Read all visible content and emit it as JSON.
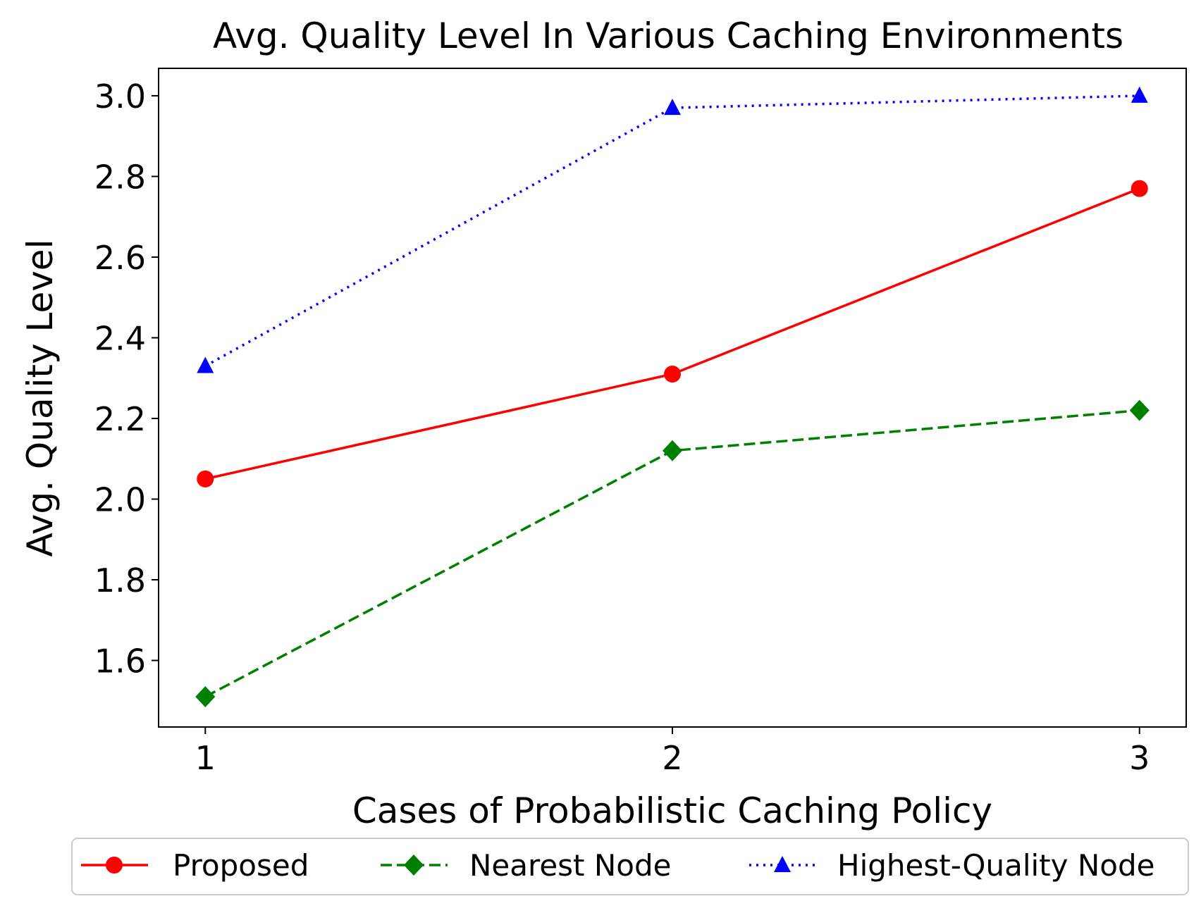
{
  "chart_data": {
    "type": "line",
    "title": "Avg. Quality Level In Various Caching Environments",
    "xlabel": "Cases of Probabilistic Caching Policy",
    "ylabel": "Avg. Quality Level",
    "x": [
      1,
      2,
      3
    ],
    "xticks": [
      "1",
      "2",
      "3"
    ],
    "yticks": [
      "1.6",
      "1.8",
      "2.0",
      "2.2",
      "2.4",
      "2.6",
      "2.8",
      "3.0"
    ],
    "xlim": [
      0.9,
      3.1
    ],
    "ylim": [
      1.435,
      3.068
    ],
    "grid": false,
    "legend_position": "bottom",
    "series": [
      {
        "name": "Proposed",
        "values": [
          2.05,
          2.31,
          2.77
        ],
        "color": "#ff0000",
        "marker": "circle",
        "linestyle": "solid"
      },
      {
        "name": "Nearest Node",
        "values": [
          1.51,
          2.12,
          2.22
        ],
        "color": "#008000",
        "marker": "diamond",
        "linestyle": "dashed"
      },
      {
        "name": "Highest-Quality Node",
        "values": [
          2.33,
          2.97,
          3.0
        ],
        "color": "#0000ff",
        "marker": "triangle",
        "linestyle": "dotted"
      }
    ]
  }
}
